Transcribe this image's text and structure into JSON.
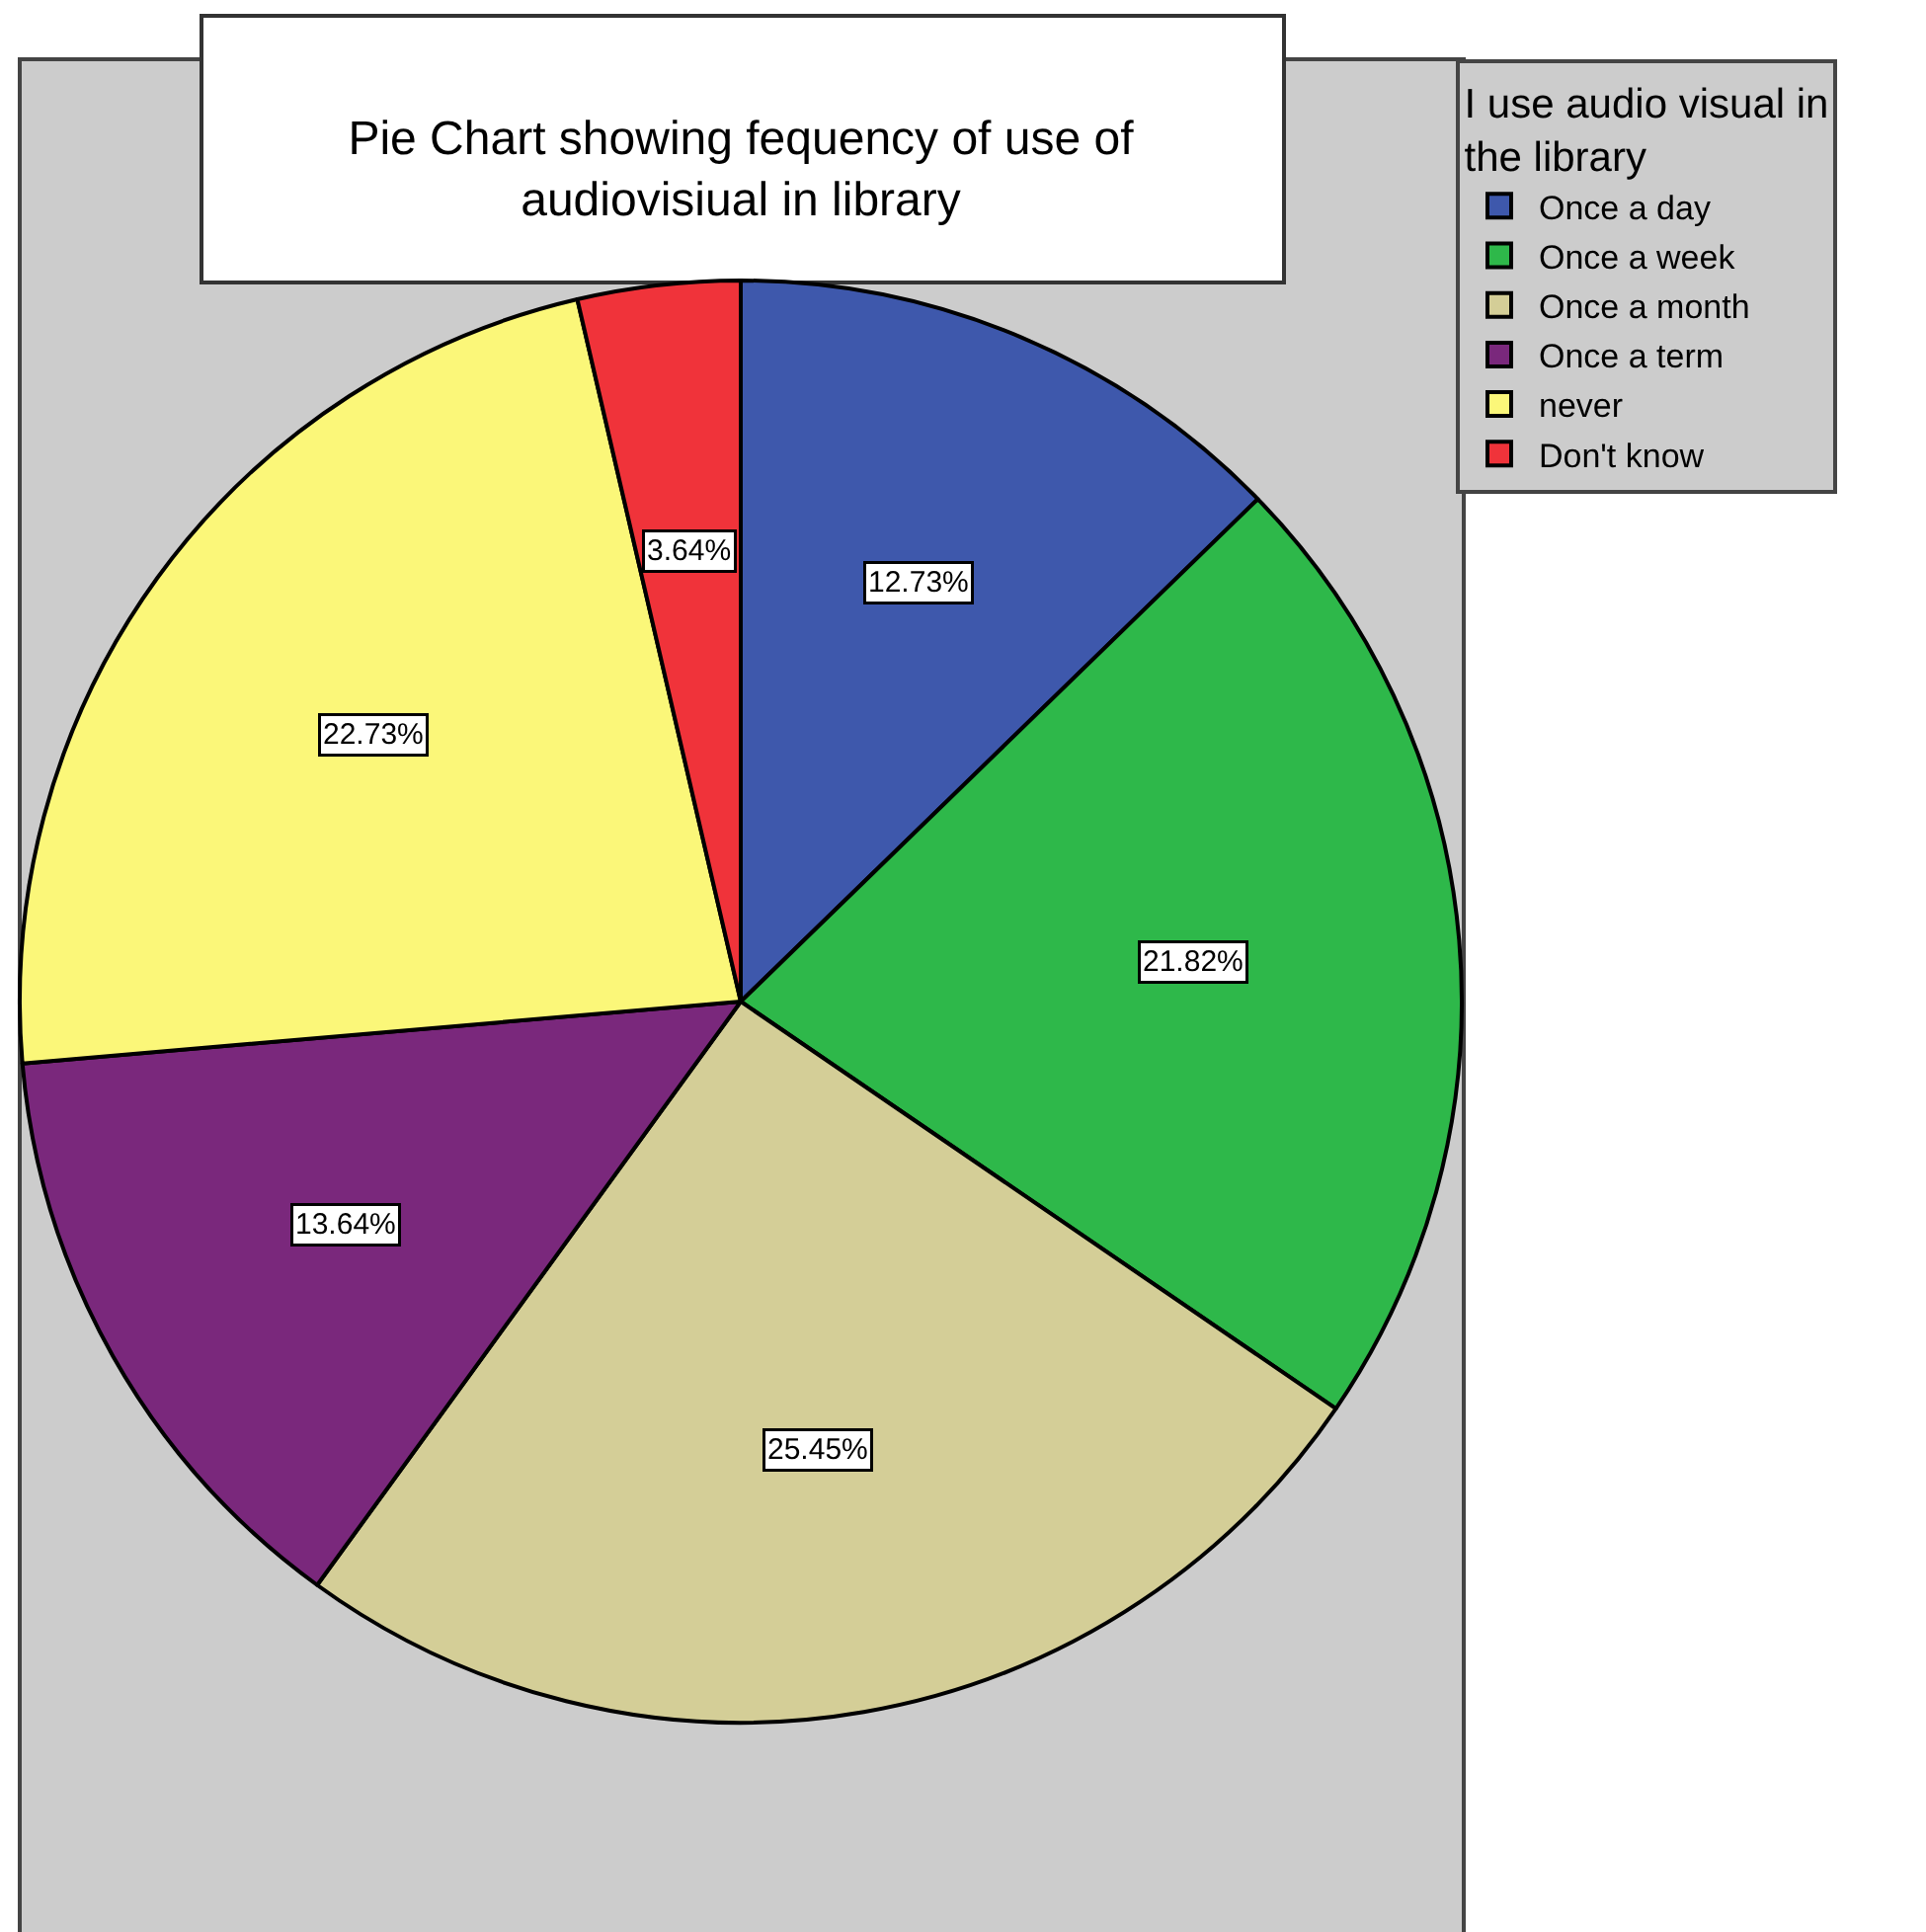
{
  "chart_data": {
    "type": "pie",
    "title": "Pie Chart showing fequency of use of audiovisiual in library",
    "legend_title": "I use audio visual in the library",
    "categories": [
      "Once a day",
      "Once a week",
      "Once a month",
      "Once a term",
      "never",
      "Don't know"
    ],
    "values": [
      12.73,
      21.82,
      25.45,
      13.64,
      22.73,
      3.64
    ],
    "colors": [
      "#3e58ac",
      "#2eb84a",
      "#d4ce97",
      "#7a287c",
      "#fbf779",
      "#f0333a"
    ],
    "value_labels": [
      "12.73%",
      "21.82%",
      "25.45%",
      "13.64%",
      "22.73%",
      "3.64%"
    ],
    "legend": "top right"
  }
}
